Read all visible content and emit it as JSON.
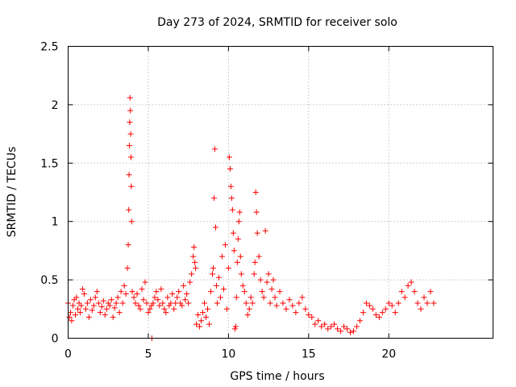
{
  "chart_data": {
    "type": "scatter",
    "title": "Day 273 of 2024, SRMTID for receiver solo",
    "xlabel": "GPS time / hours",
    "ylabel": "SRMTID / TECUs",
    "xlim": [
      0,
      26.5
    ],
    "ylim": [
      0,
      2.5
    ],
    "xticks": [
      0,
      5,
      10,
      15,
      20
    ],
    "yticks": [
      0,
      0.5,
      1,
      1.5,
      2,
      2.5
    ],
    "xtick_labels": [
      "0",
      "5",
      "10",
      "15",
      "20"
    ],
    "ytick_labels": [
      "0",
      "0.5",
      "1",
      "1.5",
      "2",
      "2.5"
    ],
    "grid": true,
    "marker": "+",
    "color": "#ff0000",
    "series": [
      {
        "name": "solo",
        "x": [
          0.0,
          0.08,
          0.15,
          0.22,
          0.3,
          0.38,
          0.45,
          0.52,
          0.6,
          0.68,
          0.75,
          0.82,
          0.9,
          1.0,
          1.1,
          1.2,
          1.3,
          1.4,
          1.5,
          1.6,
          1.7,
          1.8,
          1.9,
          2.0,
          2.1,
          2.2,
          2.3,
          2.4,
          2.5,
          2.6,
          2.7,
          2.8,
          2.9,
          3.0,
          3.1,
          3.2,
          3.3,
          3.4,
          3.5,
          3.6,
          3.7,
          3.75,
          3.78,
          3.8,
          3.82,
          3.84,
          3.86,
          3.88,
          3.9,
          3.92,
          3.94,
          3.96,
          4.0,
          4.1,
          4.2,
          4.3,
          4.4,
          4.5,
          4.6,
          4.7,
          4.8,
          4.9,
          5.0,
          5.1,
          5.2,
          5.22,
          5.3,
          5.4,
          5.5,
          5.6,
          5.7,
          5.8,
          5.9,
          6.0,
          6.1,
          6.2,
          6.3,
          6.4,
          6.5,
          6.6,
          6.7,
          6.8,
          6.9,
          7.0,
          7.1,
          7.2,
          7.3,
          7.4,
          7.5,
          7.6,
          7.7,
          7.8,
          7.85,
          7.9,
          7.95,
          8.0,
          8.1,
          8.2,
          8.3,
          8.4,
          8.5,
          8.6,
          8.7,
          8.8,
          8.9,
          9.0,
          9.05,
          9.1,
          9.15,
          9.2,
          9.25,
          9.3,
          9.4,
          9.5,
          9.6,
          9.7,
          9.8,
          9.9,
          10.0,
          10.05,
          10.1,
          10.15,
          10.2,
          10.25,
          10.3,
          10.35,
          10.4,
          10.45,
          10.5,
          10.55,
          10.6,
          10.65,
          10.7,
          10.75,
          10.8,
          10.9,
          11.0,
          11.1,
          11.2,
          11.3,
          11.4,
          11.5,
          11.6,
          11.65,
          11.7,
          11.75,
          11.8,
          11.9,
          12.0,
          12.1,
          12.2,
          12.3,
          12.4,
          12.5,
          12.6,
          12.7,
          12.8,
          12.9,
          13.0,
          13.2,
          13.4,
          13.6,
          13.8,
          14.0,
          14.2,
          14.4,
          14.6,
          14.8,
          15.0,
          15.2,
          15.4,
          15.6,
          15.8,
          16.0,
          16.2,
          16.4,
          16.6,
          16.8,
          17.0,
          17.2,
          17.4,
          17.6,
          17.8,
          18.0,
          18.2,
          18.4,
          18.6,
          18.8,
          19.0,
          19.2,
          19.4,
          19.6,
          19.8,
          20.0,
          20.2,
          20.4,
          20.6,
          20.8,
          21.0,
          21.2,
          21.4,
          21.6,
          21.8,
          22.0,
          22.2,
          22.4,
          22.6,
          22.8
        ],
        "y": [
          0.3,
          0.18,
          0.22,
          0.15,
          0.28,
          0.33,
          0.2,
          0.35,
          0.25,
          0.3,
          0.22,
          0.28,
          0.42,
          0.38,
          0.25,
          0.3,
          0.18,
          0.33,
          0.24,
          0.28,
          0.35,
          0.4,
          0.3,
          0.22,
          0.27,
          0.32,
          0.2,
          0.25,
          0.3,
          0.28,
          0.33,
          0.18,
          0.26,
          0.3,
          0.35,
          0.22,
          0.4,
          0.3,
          0.45,
          0.38,
          0.6,
          0.8,
          1.1,
          1.4,
          1.65,
          1.85,
          2.06,
          1.95,
          1.75,
          1.55,
          1.3,
          1.0,
          0.4,
          0.35,
          0.3,
          0.38,
          0.28,
          0.25,
          0.42,
          0.33,
          0.48,
          0.3,
          0.22,
          0.25,
          0.28,
          0.0,
          0.3,
          0.35,
          0.4,
          0.33,
          0.28,
          0.42,
          0.3,
          0.25,
          0.22,
          0.35,
          0.28,
          0.3,
          0.38,
          0.25,
          0.3,
          0.35,
          0.4,
          0.3,
          0.28,
          0.45,
          0.33,
          0.38,
          0.3,
          0.48,
          0.55,
          0.7,
          0.78,
          0.65,
          0.6,
          0.12,
          0.2,
          0.1,
          0.15,
          0.22,
          0.3,
          0.18,
          0.25,
          0.12,
          0.4,
          0.55,
          0.6,
          1.2,
          1.62,
          0.95,
          0.45,
          0.3,
          0.52,
          0.35,
          0.7,
          0.42,
          0.8,
          0.25,
          0.6,
          1.55,
          1.45,
          1.3,
          1.2,
          1.1,
          0.9,
          0.75,
          0.08,
          0.1,
          0.35,
          0.65,
          0.85,
          1.0,
          1.08,
          0.7,
          0.55,
          0.45,
          0.4,
          0.3,
          0.2,
          0.25,
          0.35,
          0.3,
          0.55,
          0.65,
          1.25,
          1.08,
          0.9,
          0.7,
          0.5,
          0.4,
          0.35,
          0.92,
          0.48,
          0.55,
          0.3,
          0.42,
          0.5,
          0.35,
          0.28,
          0.4,
          0.3,
          0.25,
          0.33,
          0.28,
          0.22,
          0.3,
          0.35,
          0.25,
          0.2,
          0.18,
          0.12,
          0.15,
          0.1,
          0.12,
          0.08,
          0.1,
          0.12,
          0.08,
          0.06,
          0.1,
          0.08,
          0.05,
          0.06,
          0.1,
          0.15,
          0.22,
          0.3,
          0.28,
          0.25,
          0.2,
          0.18,
          0.22,
          0.25,
          0.3,
          0.28,
          0.22,
          0.3,
          0.4,
          0.35,
          0.45,
          0.48,
          0.4,
          0.3,
          0.25,
          0.35,
          0.3,
          0.4,
          0.3
        ]
      }
    ]
  }
}
